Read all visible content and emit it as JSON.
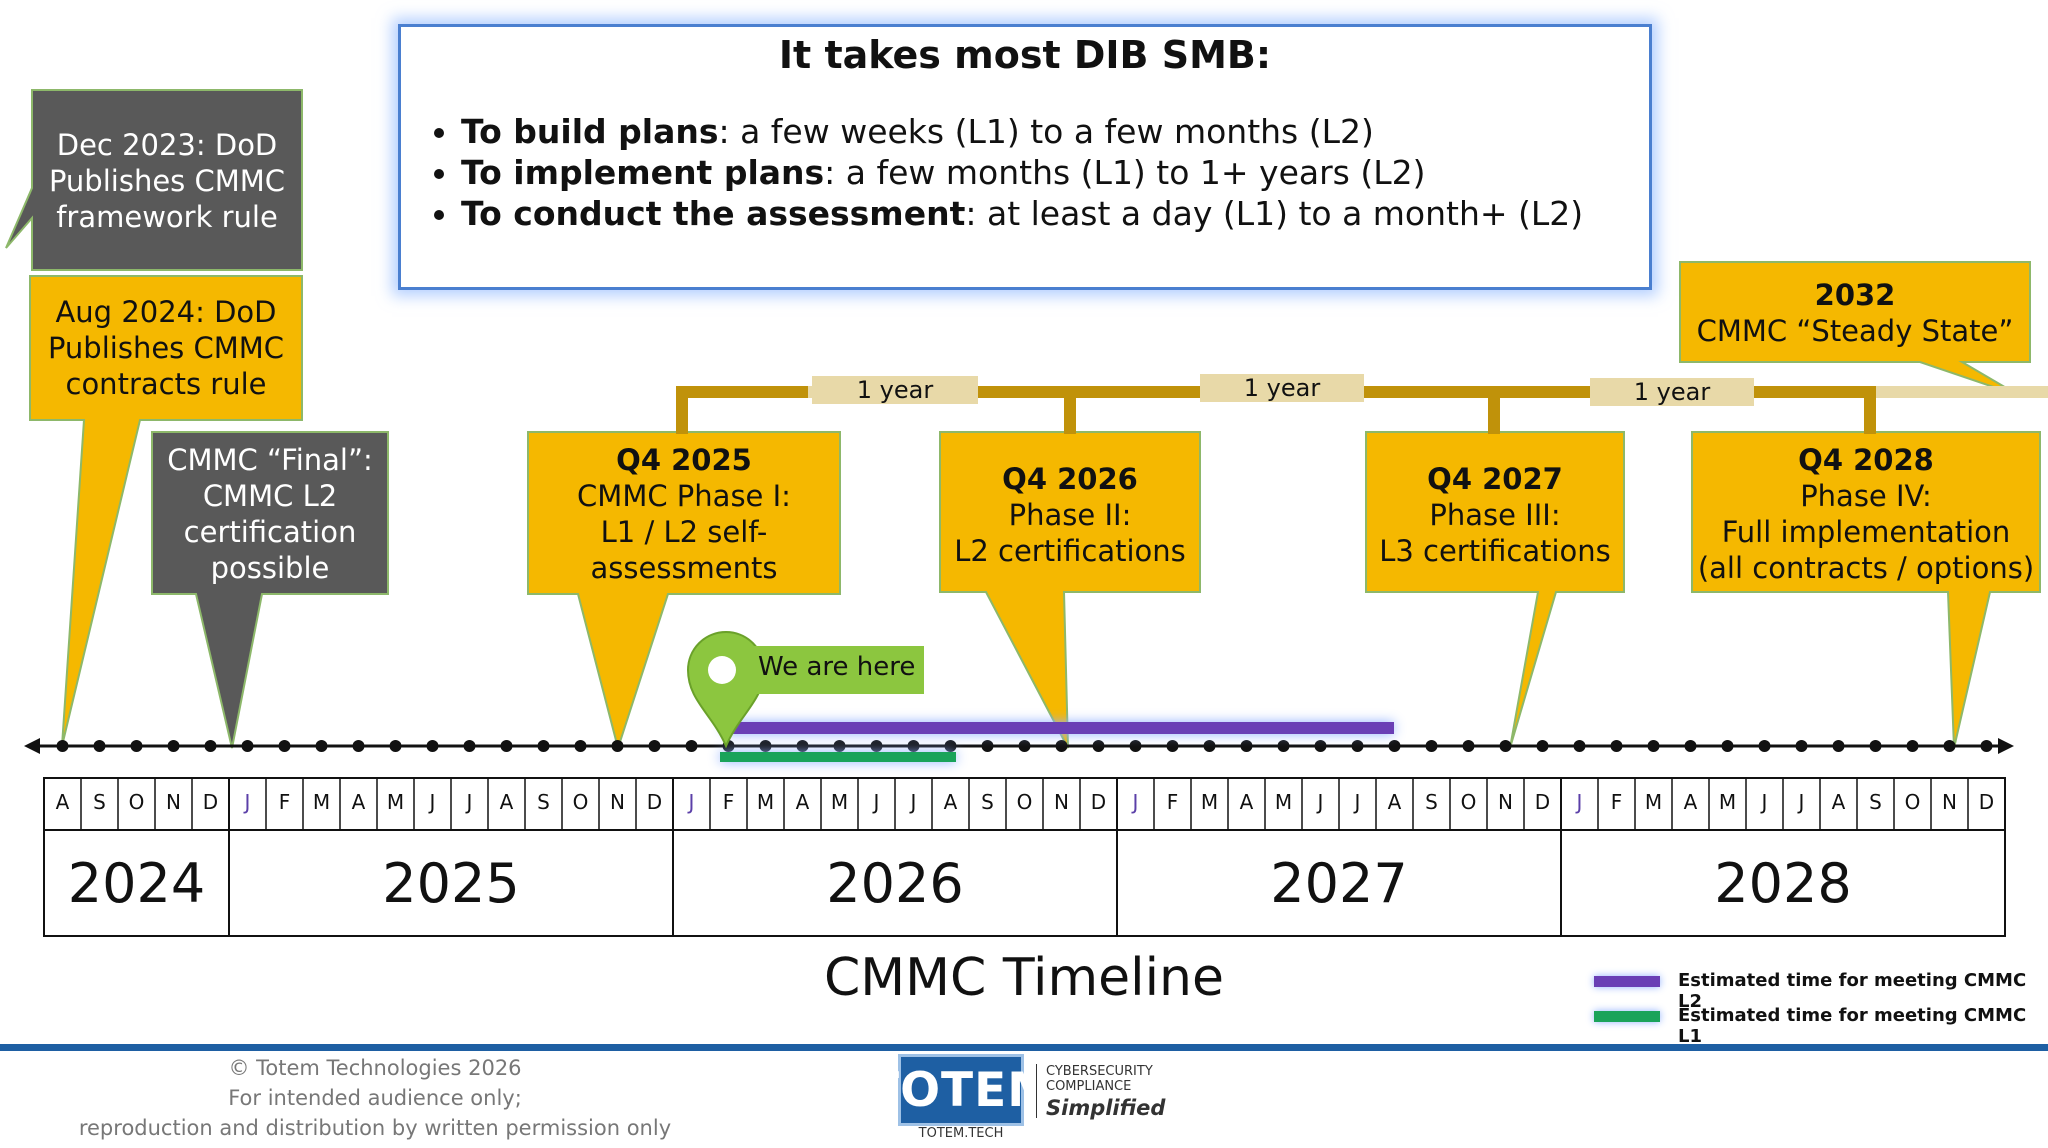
{
  "infobox": {
    "title": "It takes most DIB SMB:",
    "bullets": [
      {
        "bold": "To build plans",
        "rest": ": a few weeks (L1) to a few months (L2)"
      },
      {
        "bold": "To implement plans",
        "rest": ": a few months (L1) to 1+ years (L2)"
      },
      {
        "bold": "To conduct the assessment",
        "rest": ": at least a day (L1) to a month+ (L2)"
      }
    ]
  },
  "callouts": {
    "dec2023": {
      "lines": [
        "Dec 2023: DoD",
        "Publishes CMMC",
        "framework rule"
      ]
    },
    "aug2024": {
      "lines": [
        "Aug 2024: DoD",
        "Publishes CMMC",
        "contracts rule"
      ]
    },
    "final": {
      "lines": [
        "CMMC “Final”:",
        "CMMC L2",
        "certification",
        "possible"
      ]
    },
    "q4_2025": {
      "title": "Q4 2025",
      "lines": [
        "CMMC Phase I:",
        "L1 / L2 self-",
        "assessments"
      ]
    },
    "q4_2026": {
      "title": "Q4 2026",
      "lines": [
        "Phase II:",
        "L2 certifications"
      ]
    },
    "q4_2027": {
      "title": "Q4 2027",
      "lines": [
        "Phase III:",
        "L3 certifications"
      ]
    },
    "q4_2028": {
      "title": "Q4 2028",
      "lines": [
        "Phase IV:",
        "Full implementation",
        "(all contracts / options)"
      ]
    },
    "steady": {
      "title": "2032",
      "lines": [
        "CMMC “Steady State”"
      ]
    }
  },
  "year_gap_label": "1 year",
  "we_are_here": "We are here",
  "months": [
    "A",
    "S",
    "O",
    "N",
    "D",
    "J",
    "F",
    "M",
    "A",
    "M",
    "J",
    "J",
    "A",
    "S",
    "O",
    "N",
    "D",
    "J",
    "F",
    "M",
    "A",
    "M",
    "J",
    "J",
    "A",
    "S",
    "O",
    "N",
    "D",
    "J",
    "F",
    "M",
    "A",
    "M",
    "J",
    "J",
    "A",
    "S",
    "O",
    "N",
    "D",
    "J",
    "F",
    "M",
    "A",
    "M",
    "J",
    "J",
    "A",
    "S",
    "O",
    "N",
    "D"
  ],
  "years": [
    {
      "label": "2024",
      "months": 5
    },
    {
      "label": "2025",
      "months": 12
    },
    {
      "label": "2026",
      "months": 12
    },
    {
      "label": "2027",
      "months": 12
    },
    {
      "label": "2028",
      "months": 12
    }
  ],
  "timeline_title": "CMMC Timeline",
  "legend": [
    {
      "label": "Estimated time for meeting CMMC L2",
      "color": "#6a3fb5"
    },
    {
      "label": "Estimated time for meeting CMMC L1",
      "color": "#1aa35a"
    }
  ],
  "footer": {
    "lines": [
      "© Totem Technologies 2026",
      "For intended audience only;",
      "reproduction and distribution by written permission only"
    ]
  },
  "logo": {
    "brand": "TOTEM",
    "url": "TOTEM.TECH",
    "tagline": [
      "CYBERSECURITY",
      "COMPLIANCE"
    ],
    "tagline2": "Simplified"
  },
  "colors": {
    "yellow": "#f5b800",
    "dark_gray": "#595959",
    "bracket": "#c0920a",
    "bracket_light": "#e8d9a8",
    "green_pin": "#8cc63f",
    "footer_rule": "#1e5fa3"
  }
}
